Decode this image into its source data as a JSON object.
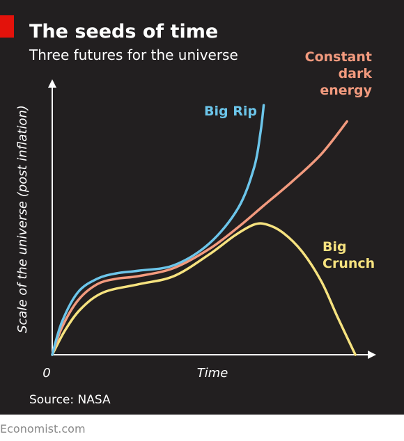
{
  "chart_data": {
    "type": "line",
    "title": "The seeds of time",
    "subtitle": "Three futures for the universe",
    "x_label": "Time",
    "y_label": "Scale of the universe (post inflation)",
    "source": "Source: NASA",
    "footer": "Economist.com",
    "xlim": [
      0,
      100
    ],
    "ylim": [
      0,
      100
    ],
    "xticks": [
      0
    ],
    "series": [
      {
        "name": "Big Rip",
        "color": "#6cc5ea",
        "x": [
          0,
          3,
          8,
          14,
          20,
          27,
          38,
          49,
          58,
          63,
          65,
          66
        ],
        "values": [
          0,
          12,
          23,
          28,
          30,
          31,
          33,
          41,
          54,
          69,
          82,
          92
        ]
      },
      {
        "name": "Constant dark energy",
        "color": "#f29a7e",
        "x": [
          0,
          3,
          8,
          14,
          20,
          27,
          38,
          49,
          58,
          66,
          75,
          84,
          92
        ],
        "values": [
          0,
          10,
          20,
          26,
          28,
          29,
          32,
          39,
          47,
          55,
          64,
          74,
          86
        ]
      },
      {
        "name": "Big Crunch",
        "color": "#f6e27f",
        "x": [
          0,
          4,
          9,
          16,
          27,
          38,
          49,
          57,
          63,
          67,
          72,
          78,
          84,
          89,
          94.6
        ],
        "values": [
          0,
          9,
          17,
          23,
          26,
          29,
          37,
          44,
          48,
          48,
          45,
          38,
          27,
          14,
          0
        ]
      }
    ]
  }
}
